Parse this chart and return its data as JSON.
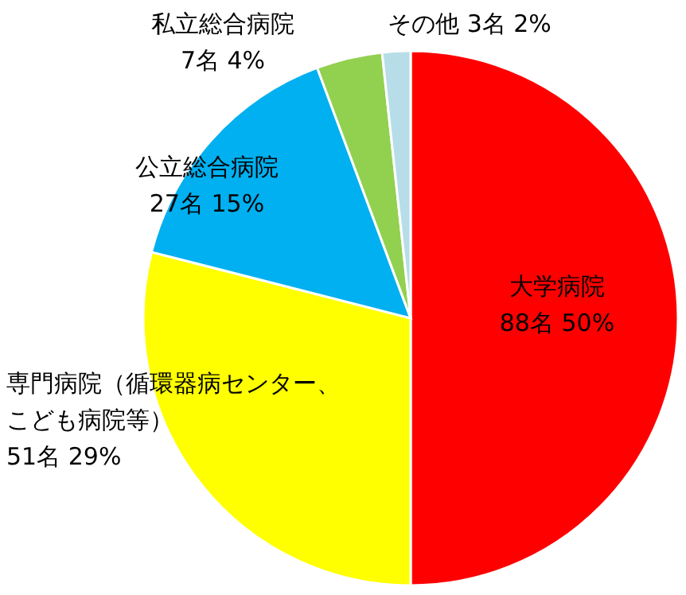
{
  "chart_data": {
    "type": "pie",
    "categories": [
      "大学病院",
      "専門病院（循環器病センター、こども病院等）",
      "公立総合病院",
      "私立総合病院",
      "その他"
    ],
    "values": [
      88,
      51,
      27,
      7,
      3
    ],
    "value_labels": [
      "88名 50%",
      "51名 29%",
      "27名 15%",
      "7名 4%",
      "3名 2%"
    ],
    "colors": [
      "#ff0000",
      "#ffff00",
      "#00b0f0",
      "#92d050",
      "#b7dee8"
    ]
  }
}
